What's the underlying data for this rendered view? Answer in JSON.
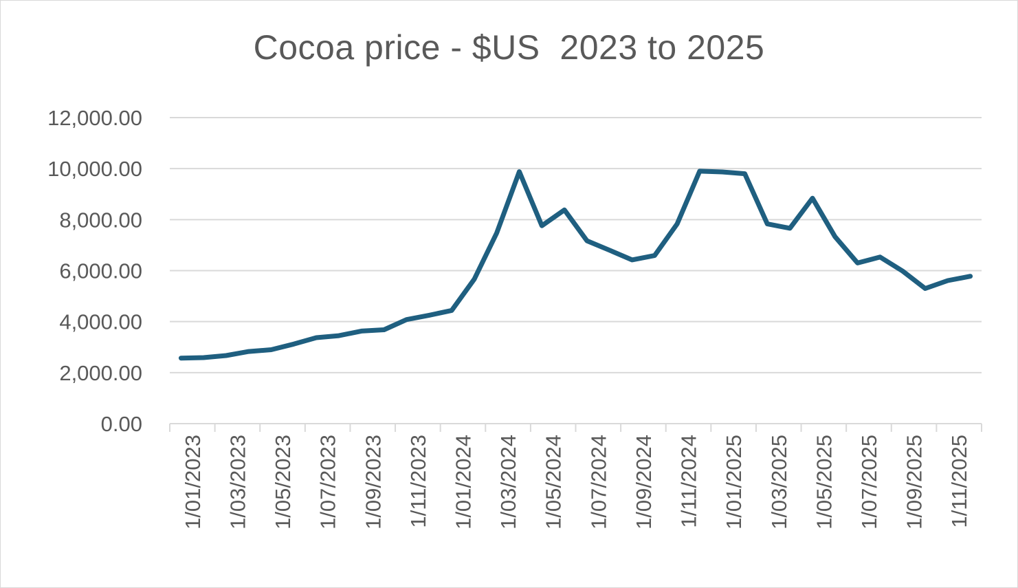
{
  "chart_data": {
    "type": "line",
    "title": "Cocoa price - $US  2023 to 2025",
    "xlabel": "",
    "ylabel": "",
    "ylim": [
      0,
      12000
    ],
    "y_ticks": [
      "0.00",
      "2,000.00",
      "4,000.00",
      "6,000.00",
      "8,000.00",
      "10,000.00",
      "12,000.00"
    ],
    "x_tick_labels": [
      "1/01/2023",
      "1/03/2023",
      "1/05/2023",
      "1/07/2023",
      "1/09/2023",
      "1/11/2023",
      "1/01/2024",
      "1/03/2024",
      "1/05/2024",
      "1/07/2024",
      "1/09/2024",
      "1/11/2024",
      "1/01/2025",
      "1/03/2025",
      "1/05/2025",
      "1/07/2025",
      "1/09/2025",
      "1/11/2025"
    ],
    "grid": true,
    "legend": "none",
    "line_color": "#1f5f80",
    "series": [
      {
        "x": [
          "1/01/2023",
          "1/02/2023",
          "1/03/2023",
          "1/04/2023",
          "1/05/2023",
          "1/06/2023",
          "1/07/2023",
          "1/08/2023",
          "1/09/2023",
          "1/10/2023",
          "1/11/2023",
          "1/12/2023",
          "1/01/2024",
          "1/02/2024",
          "1/03/2024",
          "1/04/2024",
          "1/05/2024",
          "1/06/2024",
          "1/07/2024",
          "1/08/2024",
          "1/09/2024",
          "1/10/2024",
          "1/11/2024",
          "1/12/2024",
          "1/01/2025",
          "1/02/2025",
          "1/03/2025",
          "1/04/2025",
          "1/05/2025",
          "1/06/2025",
          "1/07/2025",
          "1/08/2025",
          "1/09/2025",
          "1/10/2025",
          "1/11/2025",
          "1/12/2025"
        ],
        "values": [
          2570,
          2590,
          2670,
          2830,
          2900,
          3120,
          3370,
          3450,
          3630,
          3680,
          4080,
          4250,
          4440,
          5660,
          7480,
          9880,
          7760,
          8380,
          7170,
          6800,
          6420,
          6590,
          7830,
          9900,
          9870,
          9800,
          7830,
          7660,
          8840,
          7330,
          6300,
          6530,
          5980,
          5300,
          5610,
          5780
        ]
      }
    ]
  }
}
